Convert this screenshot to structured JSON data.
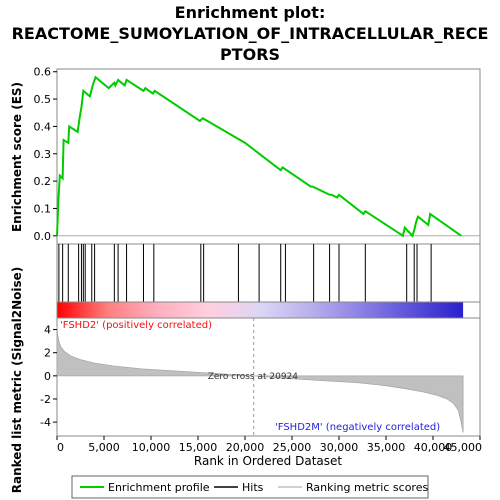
{
  "chart_data": {
    "type": "line",
    "title_lines": [
      "Enrichment plot:",
      "REACTOME_SUMOYLATION_OF_INTRACELLULAR_RECE",
      "PTORS"
    ],
    "xlabel": "Rank in Ordered Dataset",
    "xlim": [
      0,
      45000
    ],
    "x_ticks": [
      0,
      5000,
      10000,
      15000,
      20000,
      25000,
      30000,
      35000,
      40000,
      45000
    ],
    "x_tick_labels": [
      "0",
      "5,000",
      "10,000",
      "15,000",
      "20,000",
      "25,000",
      "30,000",
      "35,000",
      "40,000",
      "45,000"
    ],
    "dataset_size": 43200,
    "panels": {
      "enrichment": {
        "ylabel": "Enrichment score (ES)",
        "ylim": [
          -0.03,
          0.61
        ],
        "y_ticks": [
          0.0,
          0.1,
          0.2,
          0.3,
          0.4,
          0.5,
          0.6
        ],
        "y_tick_labels": [
          "0.0",
          "0.1",
          "0.2",
          "0.3",
          "0.4",
          "0.5",
          "0.6"
        ],
        "color": "#00cc00",
        "series": [
          {
            "name": "Enrichment profile",
            "x": [
              0,
              150,
              300,
              600,
              700,
              1200,
              1300,
              2200,
              2400,
              2600,
              2800,
              3500,
              3800,
              4000,
              4100,
              5500,
              6100,
              6200,
              6500,
              7200,
              7400,
              9200,
              9400,
              10200,
              10400,
              15200,
              15500,
              20000,
              23800,
              24000,
              27000,
              27200,
              29000,
              29200,
              29800,
              30000,
              32600,
              32800,
              36800,
              37000,
              37800,
              38000,
              38200,
              38400,
              39500,
              39700,
              43000
            ],
            "y": [
              0.0,
              0.13,
              0.22,
              0.21,
              0.35,
              0.34,
              0.4,
              0.38,
              0.43,
              0.47,
              0.53,
              0.51,
              0.55,
              0.57,
              0.58,
              0.54,
              0.56,
              0.55,
              0.57,
              0.55,
              0.57,
              0.53,
              0.54,
              0.52,
              0.53,
              0.42,
              0.43,
              0.34,
              0.24,
              0.25,
              0.18,
              0.18,
              0.15,
              0.15,
              0.14,
              0.15,
              0.08,
              0.09,
              0.0,
              0.03,
              0.0,
              0.02,
              0.05,
              0.07,
              0.04,
              0.08,
              0.0
            ]
          }
        ]
      },
      "hits": {
        "x": [
          200,
          600,
          1200,
          2300,
          2600,
          2800,
          3000,
          3700,
          4000,
          6100,
          6500,
          7400,
          9200,
          10300,
          15300,
          15600,
          19300,
          21500,
          23800,
          24300,
          27300,
          29000,
          30000,
          32800,
          37200,
          38000,
          38300,
          39800
        ]
      },
      "ranking_bar": {
        "gradient": [
          "#ff0000",
          "#ff7f7f",
          "#ffb0c0",
          "#ffcfdf",
          "#dcd6f5",
          "#b8b0ec",
          "#8a80e6",
          "#5a50d8",
          "#2b1fcc"
        ]
      },
      "metric": {
        "ylabel": "Ranked list metric (Signal2Noise)",
        "ylim": [
          -5.2,
          5.0
        ],
        "y_ticks": [
          -4,
          -2,
          0,
          2,
          4
        ],
        "y_tick_labels": [
          "-4",
          "-2",
          "0",
          "2",
          "4"
        ],
        "fill_color": "#c0c0c0",
        "zero_cross": 20924,
        "zero_cross_label": "Zero cross at 20924",
        "pos_label": "'FSHD2' (positively correlated)",
        "neg_label": "'FSHD2M' (negatively correlated)",
        "x": [
          0,
          80,
          200,
          400,
          800,
          1500,
          2500,
          4000,
          6000,
          9000,
          12000,
          15000,
          18000,
          20924,
          24000,
          28000,
          32000,
          35000,
          37000,
          39000,
          40500,
          41500,
          42200,
          42700,
          43000,
          43200
        ],
        "y": [
          4.3,
          3.5,
          3.0,
          2.5,
          2.1,
          1.7,
          1.4,
          1.1,
          0.85,
          0.6,
          0.45,
          0.3,
          0.15,
          0.0,
          -0.2,
          -0.4,
          -0.6,
          -0.85,
          -1.1,
          -1.4,
          -1.7,
          -2.0,
          -2.4,
          -3.0,
          -4.0,
          -4.9
        ]
      }
    },
    "legend": {
      "placement": "bottom",
      "items": [
        {
          "label": "Enrichment profile",
          "kind": "line",
          "color": "#00cc00"
        },
        {
          "label": "Hits",
          "kind": "line",
          "color": "#000000"
        },
        {
          "label": "Ranking metric scores",
          "kind": "line",
          "color": "#c0c0c0"
        }
      ]
    }
  }
}
